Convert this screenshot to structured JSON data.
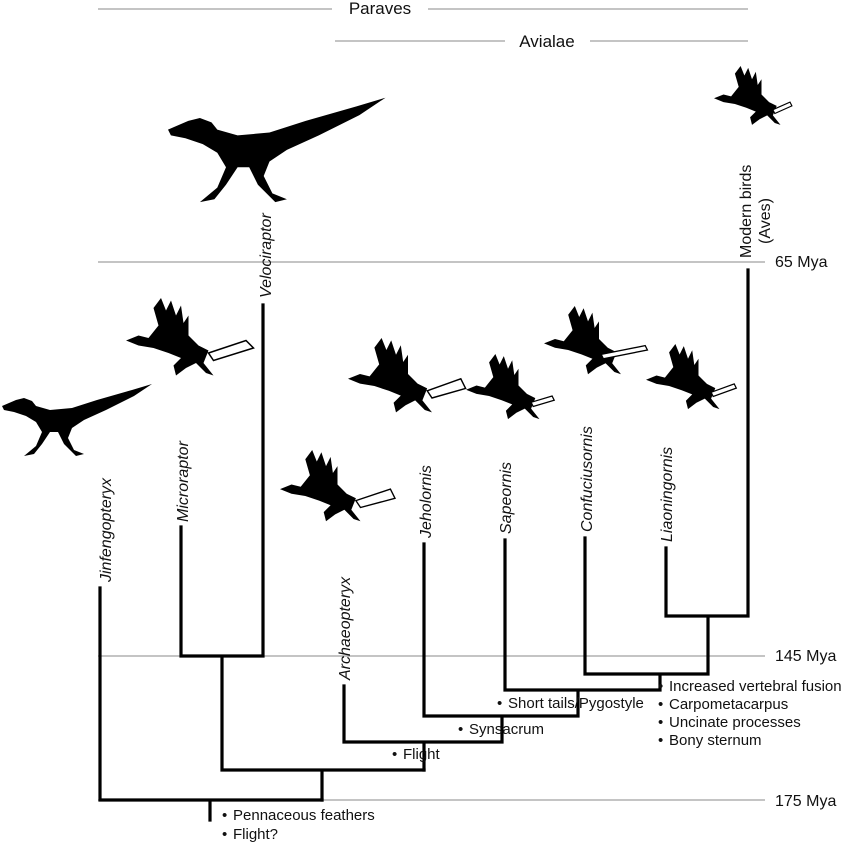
{
  "headers": {
    "paraves": "Paraves",
    "avialae": "Avialae"
  },
  "time_markers": {
    "m65": "65 Mya",
    "m145": "145 Mya",
    "m175": "175 Mya"
  },
  "taxa": {
    "jinfengopteryx": "Jinfengopteryx",
    "microraptor": "Microraptor",
    "velociraptor": "Velociraptor",
    "archaeopteryx": "Archaeopteryx",
    "jeholornis": "Jeholornis",
    "sapeornis": "Sapeornis",
    "confuciusornis": "Confuciusornis",
    "liaoningornis": "Liaoningornis",
    "modern_birds_line1": "Modern birds",
    "modern_birds_line2": "(Aves)"
  },
  "traits": {
    "pennaceous": "Pennaceous feathers",
    "flight_q": "Flight?",
    "flight": "Flight",
    "synsacrum": "Synsacrum",
    "short_tails": "Short tails/Pygostyle",
    "vertebral": "Increased vertebral fusion",
    "carpometacarpus": "Carpometacarpus",
    "uncinate": "Uncinate processes",
    "sternum": "Bony sternum"
  }
}
